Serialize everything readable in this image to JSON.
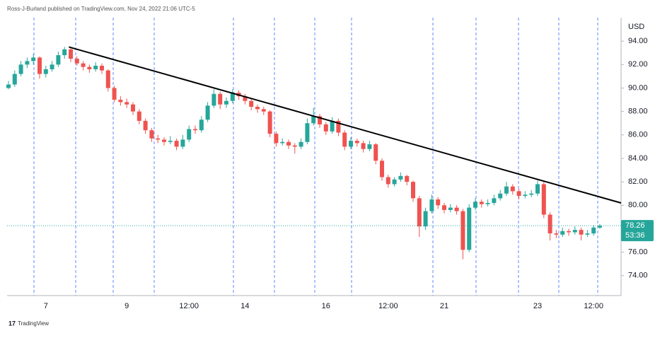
{
  "header": "Ross-J-Burland published on TradingView.com, Nov 24, 2022 21:06 UTC-5",
  "footer": "TradingView",
  "chart_data": {
    "type": "candlestick",
    "y_axis_label": "USD",
    "up_color": "#26a69a",
    "down_color": "#ef5350",
    "ylim": [
      72.3,
      96.0
    ],
    "yticks": [
      {
        "value": 74,
        "label": "74.00"
      },
      {
        "value": 76,
        "label": "76.00"
      },
      {
        "value": 78,
        "label": "78.00"
      },
      {
        "value": 80,
        "label": "80.00"
      },
      {
        "value": 82,
        "label": "82.00"
      },
      {
        "value": 84,
        "label": "84.00"
      },
      {
        "value": 86,
        "label": "86.00"
      },
      {
        "value": 88,
        "label": "88.00"
      },
      {
        "value": 90,
        "label": "90.00"
      },
      {
        "value": 92,
        "label": "92.00"
      },
      {
        "value": 94,
        "label": "94.00"
      }
    ],
    "categories": [
      null,
      null,
      null,
      null,
      null,
      null,
      "7",
      null,
      null,
      null,
      null,
      null,
      null,
      null,
      null,
      null,
      null,
      null,
      null,
      "9",
      null,
      null,
      null,
      null,
      null,
      null,
      null,
      null,
      null,
      "12:00",
      null,
      null,
      null,
      null,
      null,
      null,
      null,
      null,
      "14",
      null,
      null,
      null,
      null,
      null,
      null,
      null,
      null,
      null,
      null,
      null,
      null,
      "16",
      null,
      null,
      null,
      null,
      null,
      null,
      null,
      null,
      null,
      "12:00",
      null,
      null,
      null,
      null,
      null,
      null,
      null,
      null,
      "21",
      null,
      null,
      null,
      null,
      null,
      null,
      null,
      null,
      null,
      null,
      null,
      null,
      null,
      null,
      "23",
      null,
      null,
      null,
      null,
      null,
      null,
      null,
      null,
      "12:00",
      null
    ],
    "ohlc": [
      [
        90.0,
        90.6,
        89.9,
        90.3
      ],
      [
        90.3,
        91.5,
        90.1,
        91.2
      ],
      [
        91.2,
        92.3,
        91.0,
        92.0
      ],
      [
        92.0,
        92.6,
        91.7,
        92.3
      ],
      [
        92.3,
        92.9,
        92.0,
        92.6
      ],
      [
        92.6,
        92.7,
        90.8,
        91.2
      ],
      [
        91.2,
        91.9,
        90.9,
        91.6
      ],
      [
        91.6,
        92.3,
        91.4,
        92.0
      ],
      [
        92.0,
        93.1,
        91.8,
        92.8
      ],
      [
        92.8,
        93.5,
        92.5,
        93.3
      ],
      [
        93.3,
        93.4,
        92.2,
        92.5
      ],
      [
        92.5,
        92.7,
        91.9,
        92.1
      ],
      [
        92.1,
        92.3,
        91.5,
        91.8
      ],
      [
        91.8,
        92.0,
        91.3,
        91.6
      ],
      [
        91.6,
        92.2,
        91.4,
        91.9
      ],
      [
        91.9,
        92.1,
        91.2,
        91.5
      ],
      [
        91.5,
        91.6,
        89.7,
        90.0
      ],
      [
        90.0,
        90.2,
        88.8,
        89.0
      ],
      [
        89.0,
        89.3,
        88.5,
        88.8
      ],
      [
        88.8,
        89.1,
        88.3,
        88.6
      ],
      [
        88.6,
        88.8,
        87.7,
        88.0
      ],
      [
        88.0,
        88.2,
        86.9,
        87.2
      ],
      [
        87.2,
        87.4,
        86.1,
        86.4
      ],
      [
        86.4,
        86.6,
        85.4,
        85.7
      ],
      [
        85.7,
        86.0,
        85.3,
        85.6
      ],
      [
        85.6,
        85.8,
        85.1,
        85.4
      ],
      [
        85.4,
        85.9,
        85.2,
        85.5
      ],
      [
        85.5,
        85.7,
        84.7,
        85.0
      ],
      [
        85.0,
        86.0,
        84.8,
        85.6
      ],
      [
        85.6,
        86.8,
        85.4,
        86.5
      ],
      [
        86.5,
        86.8,
        86.1,
        86.4
      ],
      [
        86.4,
        87.6,
        86.2,
        87.3
      ],
      [
        87.3,
        88.8,
        87.1,
        88.5
      ],
      [
        88.5,
        89.9,
        88.3,
        89.5
      ],
      [
        89.5,
        89.7,
        88.2,
        88.6
      ],
      [
        88.6,
        89.2,
        88.3,
        88.9
      ],
      [
        88.9,
        89.9,
        88.7,
        89.6
      ],
      [
        89.6,
        89.8,
        89.0,
        89.3
      ],
      [
        89.3,
        89.5,
        88.6,
        88.9
      ],
      [
        88.9,
        89.1,
        88.1,
        88.4
      ],
      [
        88.4,
        88.6,
        87.9,
        88.2
      ],
      [
        88.2,
        88.4,
        87.7,
        88.0
      ],
      [
        88.0,
        88.1,
        85.8,
        86.1
      ],
      [
        86.1,
        86.3,
        85.0,
        85.3
      ],
      [
        85.3,
        85.7,
        85.1,
        85.4
      ],
      [
        85.4,
        85.6,
        84.8,
        85.1
      ],
      [
        85.1,
        85.3,
        84.4,
        85.0
      ],
      [
        85.0,
        85.7,
        84.8,
        85.4
      ],
      [
        85.4,
        87.4,
        85.2,
        87.0
      ],
      [
        87.0,
        88.3,
        86.8,
        87.6
      ],
      [
        87.6,
        87.8,
        86.6,
        86.9
      ],
      [
        86.9,
        87.1,
        86.0,
        86.3
      ],
      [
        86.3,
        87.5,
        86.1,
        87.2
      ],
      [
        87.2,
        87.4,
        85.9,
        86.2
      ],
      [
        86.2,
        86.4,
        84.7,
        85.0
      ],
      [
        85.0,
        85.8,
        84.8,
        85.5
      ],
      [
        85.5,
        85.7,
        85.0,
        85.3
      ],
      [
        85.3,
        85.5,
        84.5,
        84.8
      ],
      [
        84.8,
        85.5,
        84.6,
        85.2
      ],
      [
        85.2,
        85.3,
        83.5,
        83.8
      ],
      [
        83.8,
        84.0,
        82.1,
        82.4
      ],
      [
        82.4,
        82.6,
        81.5,
        81.8
      ],
      [
        81.8,
        82.4,
        81.6,
        82.2
      ],
      [
        82.2,
        82.8,
        82.0,
        82.5
      ],
      [
        82.5,
        82.6,
        81.7,
        82.0
      ],
      [
        82.0,
        82.1,
        80.3,
        80.6
      ],
      [
        80.6,
        80.8,
        77.3,
        78.2
      ],
      [
        78.2,
        79.8,
        77.9,
        79.5
      ],
      [
        79.5,
        80.9,
        79.3,
        80.5
      ],
      [
        80.5,
        80.7,
        79.7,
        80.0
      ],
      [
        80.0,
        80.2,
        79.3,
        79.6
      ],
      [
        79.6,
        80.1,
        79.4,
        79.8
      ],
      [
        79.8,
        80.0,
        79.2,
        79.5
      ],
      [
        79.5,
        79.7,
        75.4,
        76.2
      ],
      [
        76.2,
        80.1,
        76.0,
        79.8
      ],
      [
        79.8,
        80.6,
        79.6,
        80.3
      ],
      [
        80.3,
        80.5,
        79.8,
        80.1
      ],
      [
        80.1,
        80.5,
        79.9,
        80.2
      ],
      [
        80.2,
        80.9,
        80.0,
        80.6
      ],
      [
        80.6,
        81.3,
        80.4,
        81.0
      ],
      [
        81.0,
        82.0,
        80.8,
        81.6
      ],
      [
        81.6,
        81.8,
        80.9,
        81.2
      ],
      [
        81.2,
        81.4,
        80.5,
        80.8
      ],
      [
        80.8,
        81.2,
        80.6,
        80.9
      ],
      [
        80.9,
        81.3,
        80.7,
        81.0
      ],
      [
        81.0,
        82.1,
        80.8,
        81.8
      ],
      [
        81.8,
        82.0,
        78.9,
        79.2
      ],
      [
        79.2,
        79.4,
        77.0,
        77.6
      ],
      [
        77.6,
        77.9,
        77.2,
        77.5
      ],
      [
        77.5,
        78.1,
        77.3,
        77.8
      ],
      [
        77.8,
        78.0,
        77.4,
        77.7
      ],
      [
        77.7,
        78.2,
        77.5,
        77.9
      ],
      [
        77.9,
        78.1,
        77.0,
        77.5
      ],
      [
        77.5,
        77.9,
        77.3,
        77.6
      ],
      [
        77.6,
        78.3,
        77.4,
        78.1
      ],
      [
        78.1,
        78.4,
        78.0,
        78.26
      ]
    ],
    "trendline": {
      "x": [
        9.7,
        98.4
      ],
      "y": [
        93.5,
        80.2
      ]
    },
    "last_price": 78.26,
    "countdown": "53:36"
  }
}
